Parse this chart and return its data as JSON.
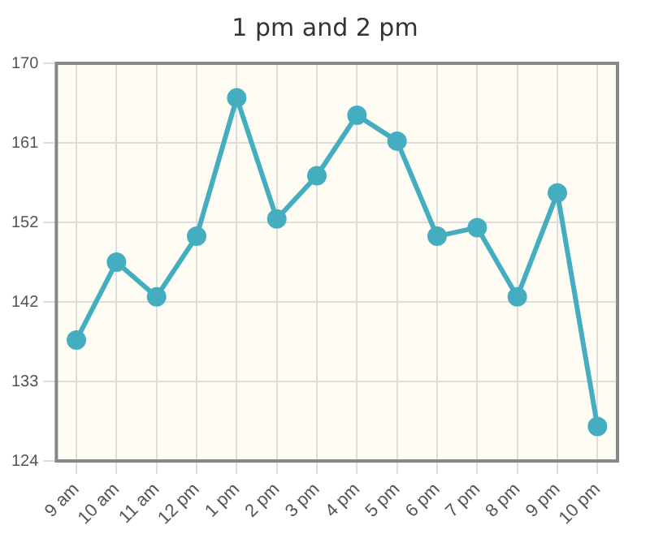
{
  "chart_data": {
    "type": "line",
    "title": "1 pm and 2 pm",
    "categories": [
      "9 am",
      "10 am",
      "11 am",
      "12 pm",
      "1 pm",
      "2 pm",
      "3 pm",
      "4 pm",
      "5 pm",
      "6 pm",
      "7 pm",
      "8 pm",
      "9 pm",
      "10 pm"
    ],
    "series": [
      {
        "color": "#45adc0",
        "values": [
          138,
          147,
          143,
          150,
          166,
          152,
          157,
          164,
          161,
          150,
          151,
          143,
          155,
          128
        ]
      }
    ],
    "ylim": [
      124,
      170
    ],
    "yticks": [
      124,
      {
        "value": 133.2,
        "label": "133"
      },
      {
        "value": 142.4,
        "label": "142"
      },
      {
        "value": 151.6,
        "label": "152"
      },
      {
        "value": 160.8,
        "label": "161"
      },
      170
    ],
    "grid": true,
    "marker": "circle",
    "line_style": "solid",
    "legend": false
  }
}
